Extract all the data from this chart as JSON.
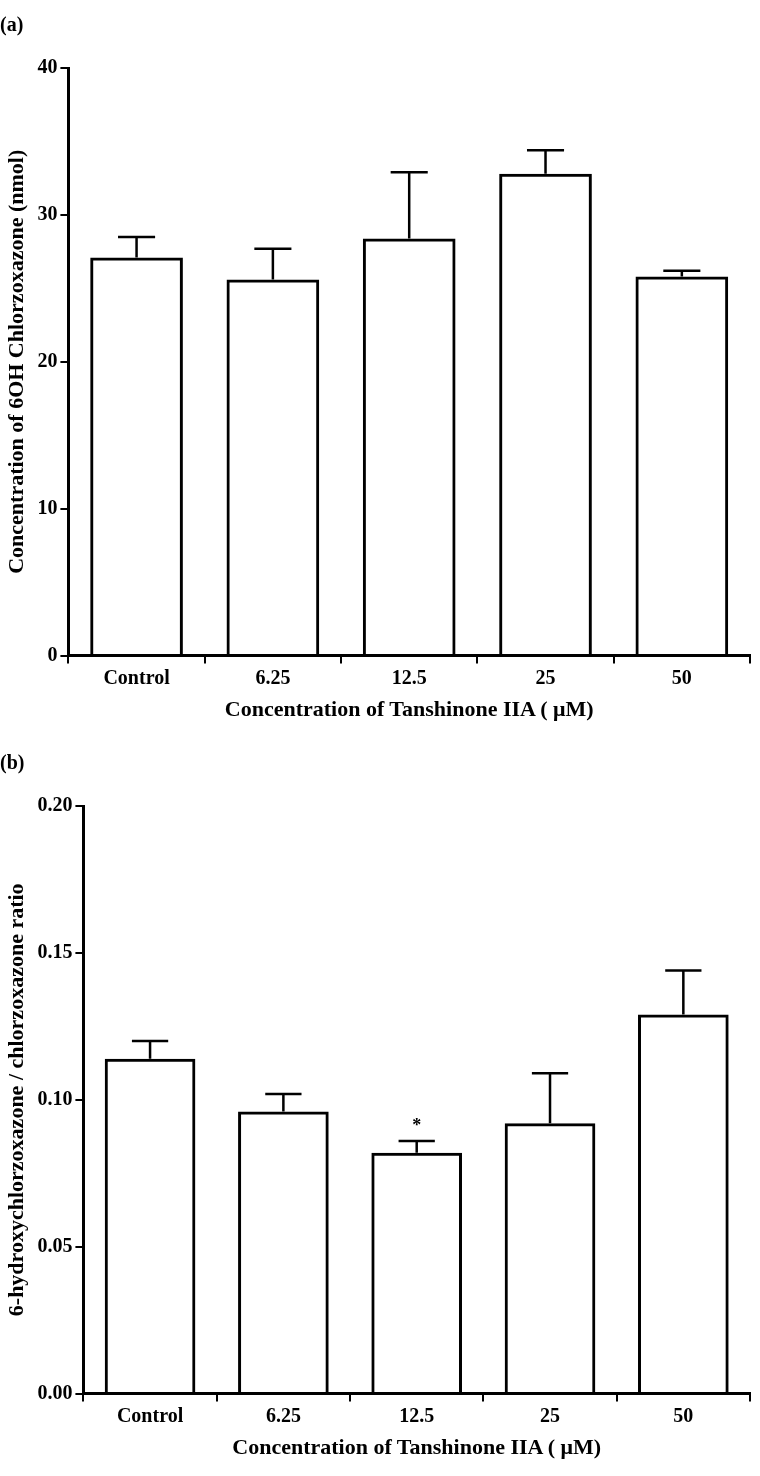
{
  "chart_data": [
    {
      "type": "bar",
      "title": "(a)",
      "xlabel": "Concentration of Tanshinone IIA ( μM)",
      "ylabel": "Concentration of 6OH Chlorzoxazone (nmol)",
      "categories": [
        "Control",
        "6.25",
        "12.5",
        "25",
        "50"
      ],
      "series": [
        {
          "color": "#000000",
          "values": [
            27.1,
            25.6,
            28.4,
            32.8,
            25.8
          ],
          "errors": [
            [
              27.1,
              28.5
            ],
            [
              25.6,
              27.7
            ],
            [
              28.4,
              32.9
            ],
            [
              32.8,
              34.4
            ],
            [
              25.8,
              26.2
            ]
          ]
        }
      ],
      "ylim": [
        0,
        40
      ],
      "yticks": [
        0,
        10,
        20,
        30,
        40
      ]
    },
    {
      "type": "bar",
      "title": "(b)",
      "xlabel": "Concentration of Tanshinone IIA ( μM)",
      "ylabel": "6-hydroxychlorzoxazone / chlorzoxazone ratio",
      "categories": [
        "Control",
        "6.25",
        "12.5",
        "25",
        "50"
      ],
      "series": [
        {
          "color": "#000000",
          "values": [
            0.114,
            0.096,
            0.082,
            0.092,
            0.129
          ],
          "errors": [
            [
              0.114,
              0.12
            ],
            [
              0.096,
              0.102
            ],
            [
              0.082,
              0.086
            ],
            [
              0.092,
              0.109
            ],
            [
              0.129,
              0.144
            ]
          ]
        }
      ],
      "ylim": [
        0,
        0.2
      ],
      "yticks": [
        {
          "value": 0,
          "label": "0.00"
        },
        {
          "value": 0.05,
          "label": "0.05"
        },
        {
          "value": 0.1,
          "label": "0.10"
        },
        {
          "value": 0.15,
          "label": "0.15"
        },
        {
          "value": 0.2,
          "label": "0.20"
        }
      ],
      "annotations": [
        {
          "text": "*",
          "x": "12.5",
          "y": 0.086
        }
      ]
    }
  ]
}
